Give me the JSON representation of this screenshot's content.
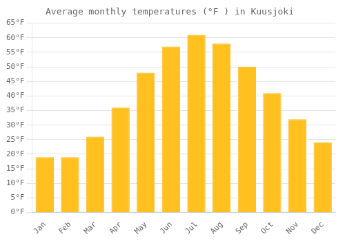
{
  "chart_data": {
    "type": "bar",
    "title": "Average monthly temperatures (°F ) in Kuusjoki",
    "categories": [
      "Jan",
      "Feb",
      "Mar",
      "Apr",
      "May",
      "Jun",
      "Jul",
      "Aug",
      "Sep",
      "Oct",
      "Nov",
      "Dec"
    ],
    "values": [
      19,
      19,
      26,
      36,
      48,
      57,
      61,
      58,
      50,
      41,
      32,
      24
    ],
    "color": "#FFC020",
    "ylim": [
      0,
      65
    ],
    "yticks": [
      {
        "value": 0,
        "label": "0°F"
      },
      {
        "value": 5,
        "label": "5°F"
      },
      {
        "value": 10,
        "label": "10°F"
      },
      {
        "value": 15,
        "label": "15°F"
      },
      {
        "value": 20,
        "label": "20°F"
      },
      {
        "value": 25,
        "label": "25°F"
      },
      {
        "value": 30,
        "label": "30°F"
      },
      {
        "value": 35,
        "label": "35°F"
      },
      {
        "value": 40,
        "label": "40°F"
      },
      {
        "value": 45,
        "label": "45°F"
      },
      {
        "value": 50,
        "label": "50°F"
      },
      {
        "value": 55,
        "label": "55°F"
      },
      {
        "value": 60,
        "label": "60°F"
      },
      {
        "value": 65,
        "label": "65°F"
      }
    ],
    "grid": true
  }
}
